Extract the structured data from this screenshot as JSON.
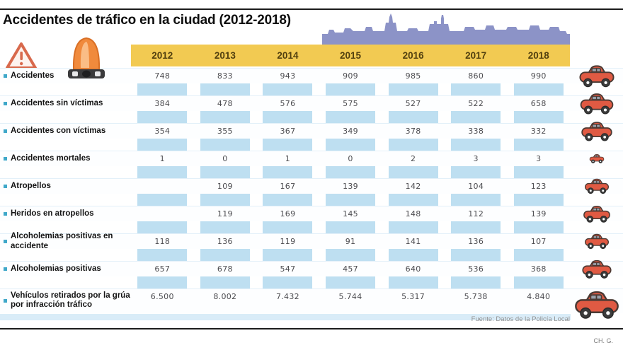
{
  "title": "Accidentes de tráfico en la ciudad (2012-2018)",
  "header": {
    "years": [
      "2012",
      "2013",
      "2014",
      "2015",
      "2016",
      "2017",
      "2018"
    ]
  },
  "table": {
    "rows": [
      {
        "label": "Accidentes",
        "icon": "car-icon",
        "values": [
          "748",
          "833",
          "943",
          "909",
          "985",
          "860",
          "990"
        ]
      },
      {
        "label": "Accidentes sin víctimas",
        "icon": "car-icon",
        "values": [
          "384",
          "478",
          "576",
          "575",
          "527",
          "522",
          "658"
        ]
      },
      {
        "label": "Accidentes con víctimas",
        "icon": "car-icon",
        "values": [
          "354",
          "355",
          "367",
          "349",
          "378",
          "338",
          "332"
        ]
      },
      {
        "label": "Accidentes mortales",
        "icon": "car-icon",
        "values": [
          "1",
          "0",
          "1",
          "0",
          "2",
          "3",
          "3"
        ]
      },
      {
        "label": "Atropellos",
        "icon": "car-icon",
        "values": [
          "",
          "109",
          "167",
          "139",
          "142",
          "104",
          "123"
        ]
      },
      {
        "label": "Heridos en atropellos",
        "icon": "car-icon",
        "values": [
          "",
          "119",
          "169",
          "145",
          "148",
          "112",
          "139"
        ]
      },
      {
        "label": "Alcoholemias positivas en accidente",
        "icon": "car-icon",
        "values": [
          "118",
          "136",
          "119",
          "91",
          "141",
          "136",
          "107"
        ]
      },
      {
        "label": "Alcoholemias positivas",
        "icon": "car-icon",
        "values": [
          "657",
          "678",
          "547",
          "457",
          "640",
          "536",
          "368"
        ]
      },
      {
        "label": "Vehículos retirados por la grúa por infracción tráfico",
        "icon": "car-icon",
        "values": [
          "6.500",
          "8.002",
          "7.432",
          "5.744",
          "5.317",
          "5.738",
          "4.840"
        ]
      }
    ]
  },
  "footer": {
    "source": "Fuente: Datos de la Policía Local",
    "credit": "CH. G."
  },
  "icons": [
    "warning-triangle-icon",
    "emergency-beacon-icon",
    "city-skyline-illustration",
    "car-icon"
  ],
  "colors": {
    "header_yellow": "#f2ca52",
    "stripe_blue": "#bedff1",
    "skyline_purple": "#8c93c7",
    "car_red": "#e05a43",
    "bullet_teal": "#3fa8c9",
    "rule_black": "#1c1c1c"
  },
  "chart_data": {
    "type": "table",
    "title": "Accidentes de tráfico en la ciudad (2012-2018)",
    "categories": [
      "2012",
      "2013",
      "2014",
      "2015",
      "2016",
      "2017",
      "2018"
    ],
    "series": [
      {
        "name": "Accidentes",
        "values": [
          748,
          833,
          943,
          909,
          985,
          860,
          990
        ]
      },
      {
        "name": "Accidentes sin víctimas",
        "values": [
          384,
          478,
          576,
          575,
          527,
          522,
          658
        ]
      },
      {
        "name": "Accidentes con víctimas",
        "values": [
          354,
          355,
          367,
          349,
          378,
          338,
          332
        ]
      },
      {
        "name": "Accidentes mortales",
        "values": [
          1,
          0,
          1,
          0,
          2,
          3,
          3
        ]
      },
      {
        "name": "Atropellos",
        "values": [
          null,
          109,
          167,
          139,
          142,
          104,
          123
        ]
      },
      {
        "name": "Heridos en atropellos",
        "values": [
          null,
          119,
          169,
          145,
          148,
          112,
          139
        ]
      },
      {
        "name": "Alcoholemias positivas en accidente",
        "values": [
          118,
          136,
          119,
          91,
          141,
          136,
          107
        ]
      },
      {
        "name": "Alcoholemias positivas",
        "values": [
          657,
          678,
          547,
          457,
          640,
          536,
          368
        ]
      },
      {
        "name": "Vehículos retirados por la grúa por infracción tráfico",
        "values": [
          6500,
          8002,
          7432,
          5744,
          5317,
          5738,
          4840
        ]
      }
    ],
    "source": "Fuente: Datos de la Policía Local"
  }
}
